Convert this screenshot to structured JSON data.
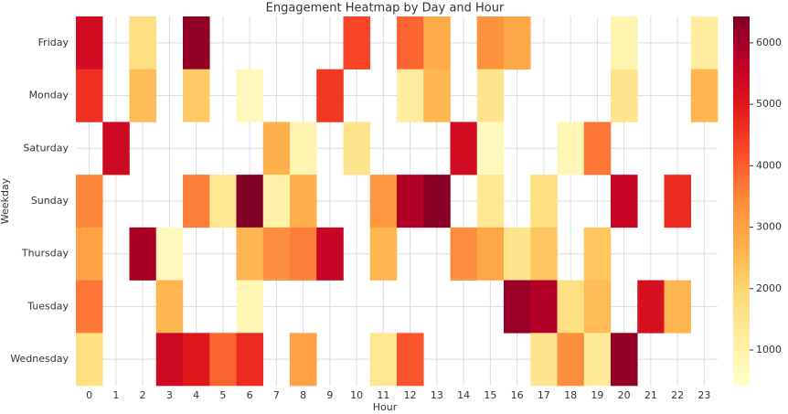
{
  "chart_data": {
    "type": "heatmap",
    "title": "Engagement Heatmap by Day and Hour",
    "x_label": "Hour",
    "y_label": "Weekday",
    "x_categories": [
      "0",
      "1",
      "2",
      "3",
      "4",
      "5",
      "6",
      "7",
      "8",
      "9",
      "10",
      "11",
      "12",
      "13",
      "14",
      "15",
      "16",
      "17",
      "18",
      "19",
      "20",
      "21",
      "22",
      "23"
    ],
    "y_categories": [
      "Friday",
      "Monday",
      "Saturday",
      "Sunday",
      "Thursday",
      "Tuesday",
      "Wednesday"
    ],
    "values": [
      [
        5300,
        null,
        1700,
        null,
        6200,
        null,
        null,
        null,
        null,
        null,
        4300,
        null,
        3900,
        2800,
        null,
        3300,
        2900,
        null,
        null,
        null,
        900,
        null,
        null,
        1200
      ],
      [
        4600,
        null,
        2500,
        null,
        2200,
        null,
        700,
        null,
        null,
        4500,
        null,
        null,
        1200,
        2600,
        null,
        1500,
        null,
        null,
        null,
        null,
        1500,
        null,
        null,
        2600
      ],
      [
        null,
        5400,
        null,
        null,
        null,
        null,
        null,
        2700,
        900,
        null,
        1500,
        null,
        null,
        null,
        5300,
        700,
        null,
        null,
        800,
        3700,
        null,
        null,
        null,
        null
      ],
      [
        3500,
        null,
        null,
        null,
        3600,
        1400,
        6400,
        1000,
        2700,
        null,
        null,
        3200,
        5800,
        6300,
        null,
        1400,
        null,
        1700,
        null,
        null,
        5500,
        null,
        4700,
        null
      ],
      [
        3000,
        null,
        5900,
        700,
        null,
        null,
        2600,
        3400,
        3600,
        5500,
        null,
        2600,
        null,
        null,
        3400,
        2900,
        1500,
        2300,
        null,
        2300,
        null,
        null,
        null,
        null
      ],
      [
        3700,
        null,
        null,
        2600,
        null,
        null,
        800,
        null,
        null,
        null,
        null,
        null,
        null,
        null,
        null,
        null,
        6100,
        5800,
        1700,
        2500,
        null,
        5200,
        2600,
        null
      ],
      [
        1700,
        null,
        null,
        5400,
        5000,
        3900,
        4700,
        null,
        3000,
        null,
        null,
        1400,
        4100,
        null,
        null,
        null,
        null,
        1500,
        3400,
        1300,
        6200,
        null,
        null,
        null
      ]
    ],
    "colorbar_lim": [
      420,
      6430
    ],
    "colorbar_ticks": [
      1000,
      2000,
      3000,
      4000,
      5000,
      6000
    ],
    "colormap": [
      "#ffffcc",
      "#ffeda0",
      "#fed976",
      "#feb24c",
      "#fd8d3c",
      "#fc4e2a",
      "#e31a1c",
      "#bd0026",
      "#800026"
    ],
    "grid": true
  }
}
